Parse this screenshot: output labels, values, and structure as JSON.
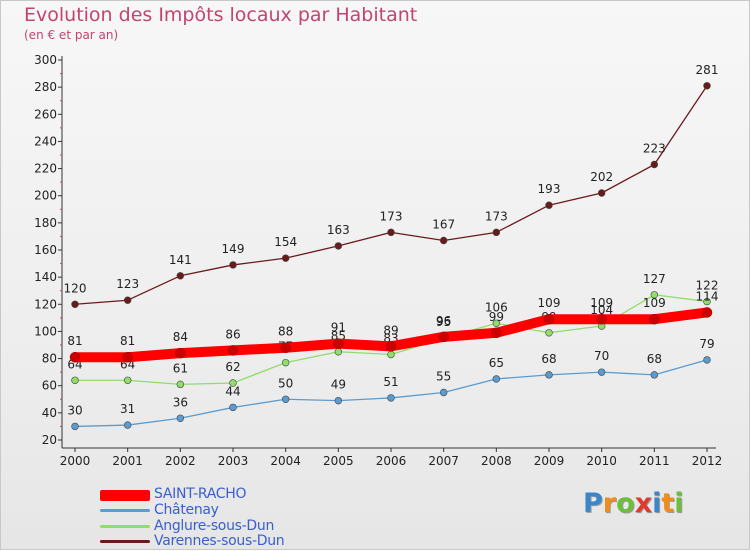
{
  "title": "Evolution des Impôts locaux par Habitant",
  "subtitle": "(en € et par an)",
  "logo": {
    "text": "Proxiti",
    "letters": [
      {
        "ch": "P",
        "color": "#3b86c9"
      },
      {
        "ch": "r",
        "color": "#f08c1a"
      },
      {
        "ch": "o",
        "color": "#6cbf3d"
      },
      {
        "ch": "x",
        "color": "#e03a2e"
      },
      {
        "ch": "i",
        "color": "#3b86c9"
      },
      {
        "ch": "t",
        "color": "#f08c1a"
      },
      {
        "ch": "i",
        "color": "#6cbf3d"
      }
    ]
  },
  "chart_data": {
    "type": "line",
    "x": [
      "2000",
      "2001",
      "2002",
      "2003",
      "2004",
      "2005",
      "2006",
      "2007",
      "2008",
      "2009",
      "2010",
      "2011",
      "2012"
    ],
    "ylim": [
      20,
      300
    ],
    "yticks": [
      20,
      40,
      60,
      80,
      100,
      120,
      140,
      160,
      180,
      200,
      220,
      240,
      260,
      280,
      300
    ],
    "grid": false,
    "legend_position": "bottom-left",
    "series": [
      {
        "name": "Varennes-sous-Dun",
        "color": "#6b1a1a",
        "values": [
          120,
          123,
          141,
          149,
          154,
          163,
          173,
          167,
          173,
          193,
          202,
          223,
          281
        ]
      },
      {
        "name": "Anglure-sous-Dun",
        "color": "#90dd6a",
        "values": [
          64,
          64,
          61,
          62,
          77,
          85,
          83,
          95,
          106,
          99,
          104,
          127,
          122
        ]
      },
      {
        "name": "Châtenay",
        "color": "#5b9bd0",
        "values": [
          30,
          31,
          36,
          44,
          50,
          49,
          51,
          55,
          65,
          68,
          70,
          68,
          79
        ]
      },
      {
        "name": "SAINT-RACHO",
        "color": "#ff0000",
        "values": [
          81,
          81,
          84,
          86,
          88,
          91,
          89,
          96,
          99,
          109,
          109,
          109,
          114
        ]
      }
    ]
  }
}
